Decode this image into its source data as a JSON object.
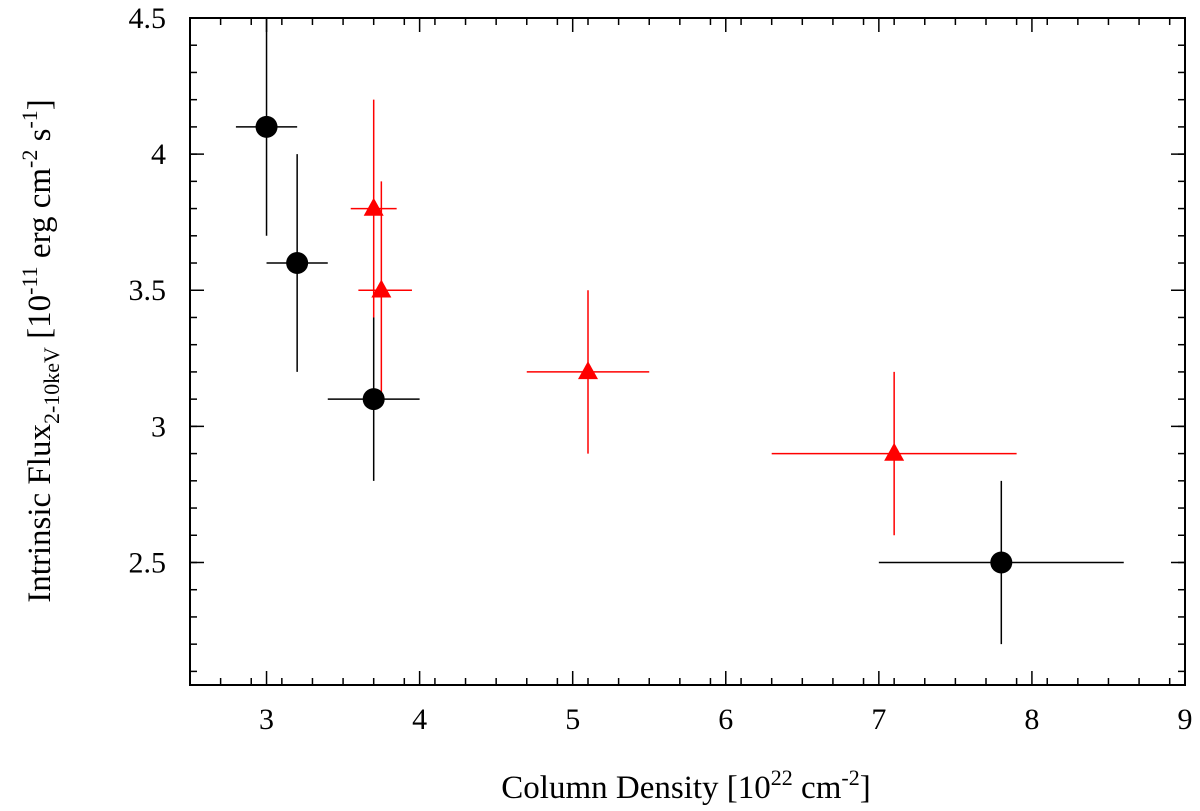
{
  "chart_data": {
    "type": "scatter",
    "title": "",
    "xlabel": {
      "main": "Column Density [10",
      "exp": "22",
      "unit": " cm",
      "unit_exp": "-2",
      "close": "]"
    },
    "ylabel": {
      "main": "Intrinsic Flux",
      "sub": "2-10keV",
      "open": " [10",
      "exp": "-11",
      "unit1": " erg cm",
      "unit1_exp": "-2",
      "unit2": " s",
      "unit2_exp": "-1",
      "close": "]"
    },
    "xlim": [
      2.5,
      9
    ],
    "ylim": [
      2.05,
      4.5
    ],
    "x_ticks": [
      {
        "value": 3,
        "label": "3"
      },
      {
        "value": 4,
        "label": "4"
      },
      {
        "value": 5,
        "label": "5"
      },
      {
        "value": 6,
        "label": "6"
      },
      {
        "value": 7,
        "label": "7"
      },
      {
        "value": 8,
        "label": "8"
      },
      {
        "value": 9,
        "label": "9"
      }
    ],
    "x_minor_step": 0.2,
    "y_ticks": [
      {
        "value": 2.5,
        "label": "2.5"
      },
      {
        "value": 3,
        "label": "3"
      },
      {
        "value": 3.5,
        "label": "3.5"
      },
      {
        "value": 4,
        "label": "4"
      },
      {
        "value": 4.5,
        "label": "4.5"
      }
    ],
    "y_minor_step": 0.1,
    "grid": false,
    "series": [
      {
        "name": "black circles",
        "marker": "circle",
        "color": "#000000",
        "points": [
          {
            "x": 3.0,
            "y": 4.1,
            "xerr": [
              2.8,
              3.2
            ],
            "yerr": [
              3.7,
              4.5
            ]
          },
          {
            "x": 3.2,
            "y": 3.6,
            "xerr": [
              3.0,
              3.4
            ],
            "yerr": [
              3.2,
              4.0
            ]
          },
          {
            "x": 3.7,
            "y": 3.1,
            "xerr": [
              3.4,
              4.0
            ],
            "yerr": [
              2.8,
              3.4
            ]
          },
          {
            "x": 7.8,
            "y": 2.5,
            "xerr": [
              7.0,
              8.6
            ],
            "yerr": [
              2.2,
              2.8
            ]
          }
        ]
      },
      {
        "name": "red triangles",
        "marker": "triangle",
        "color": "#ff0000",
        "points": [
          {
            "x": 3.7,
            "y": 3.8,
            "xerr": [
              3.55,
              3.85
            ],
            "yerr": [
              3.4,
              4.2
            ]
          },
          {
            "x": 3.75,
            "y": 3.5,
            "xerr": [
              3.6,
              3.95
            ],
            "yerr": [
              3.1,
              3.9
            ]
          },
          {
            "x": 5.1,
            "y": 3.2,
            "xerr": [
              4.7,
              5.5
            ],
            "yerr": [
              2.9,
              3.5
            ]
          },
          {
            "x": 7.1,
            "y": 2.9,
            "xerr": [
              6.3,
              7.9
            ],
            "yerr": [
              2.6,
              3.2
            ]
          }
        ]
      }
    ]
  }
}
